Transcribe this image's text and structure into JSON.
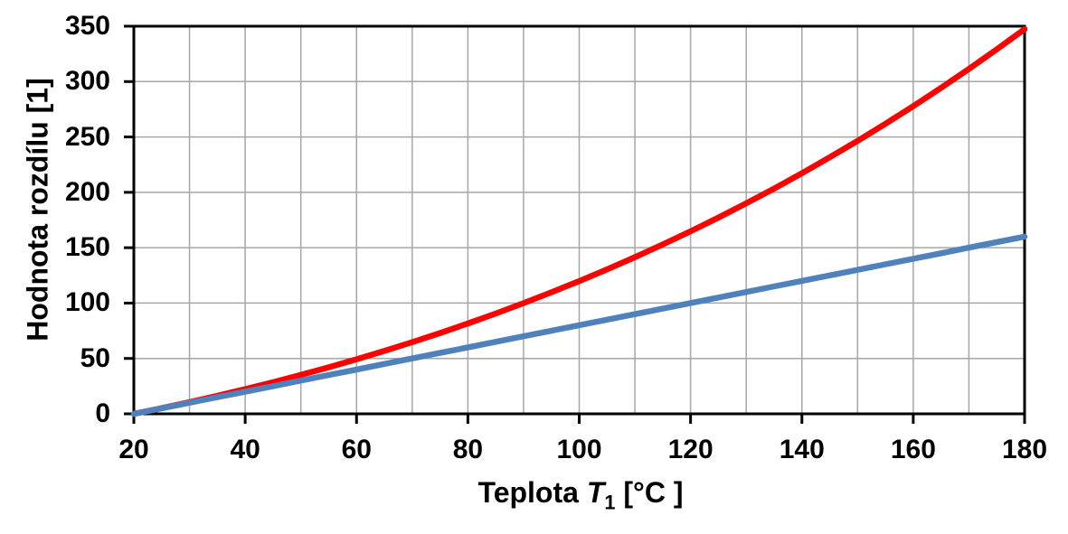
{
  "chart_data": {
    "type": "line",
    "title": "",
    "xlabel": {
      "prefix": "Teplota ",
      "symbol": "T",
      "subscript": "1",
      "suffix": " [°C ]"
    },
    "ylabel": "Hodnota rozdílu [1]",
    "xlim": [
      20,
      180
    ],
    "ylim": [
      0,
      350
    ],
    "x_tick_step": 20,
    "y_tick_step": 50,
    "x_grid_step": 10,
    "y_grid_step": 50,
    "x_ticks": [
      20,
      40,
      60,
      80,
      100,
      120,
      140,
      160,
      180
    ],
    "y_ticks": [
      0,
      50,
      100,
      150,
      200,
      250,
      300,
      350
    ],
    "grid_on": true,
    "legend_position": "none",
    "grid_color": "#A6A6A6",
    "axis_color": "#000000",
    "background_color": "#FFFFFF",
    "x": [
      20,
      25,
      30,
      35,
      40,
      45,
      50,
      55,
      60,
      65,
      70,
      75,
      80,
      85,
      90,
      95,
      100,
      105,
      110,
      115,
      120,
      125,
      130,
      135,
      140,
      145,
      150,
      155,
      160,
      165,
      170,
      175,
      180
    ],
    "series": [
      {
        "name": "red-curve",
        "color": "#FF0000",
        "values": [
          0,
          5.16,
          10.59,
          16.29,
          22.28,
          28.56,
          35.14,
          42.04,
          49.26,
          56.82,
          64.71,
          72.96,
          81.57,
          90.56,
          99.93,
          109.7,
          119.87,
          130.46,
          141.48,
          152.93,
          164.84,
          177.22,
          190.07,
          203.4,
          217.24,
          231.58,
          246.46,
          261.86,
          277.82,
          294.34,
          311.44,
          329.12,
          347.41
        ]
      },
      {
        "name": "blue-line",
        "color": "#4F81BD",
        "values": [
          0,
          5,
          10,
          15,
          20,
          25,
          30,
          35,
          40,
          45,
          50,
          55,
          60,
          65,
          70,
          75,
          80,
          85,
          90,
          95,
          100,
          105,
          110,
          115,
          120,
          125,
          130,
          135,
          140,
          145,
          150,
          155,
          160
        ]
      }
    ]
  }
}
